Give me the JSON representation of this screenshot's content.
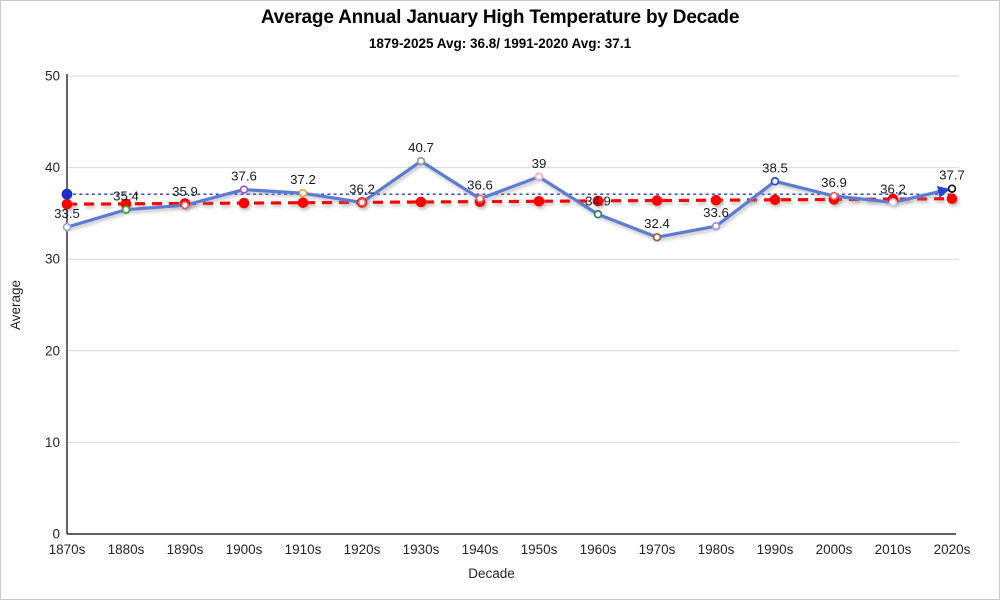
{
  "header": {
    "title": "Average Annual January High Temperature by Decade",
    "subtitle": "1879-2025 Avg: 36.8/ 1991-2020 Avg: 37.1"
  },
  "chart_data": {
    "type": "line",
    "title": "Average Annual January High Temperature by Decade",
    "subtitle": "1879-2025 Avg: 36.8/ 1991-2020 Avg: 37.1",
    "categories": [
      "1870s",
      "1880s",
      "1890s",
      "1900s",
      "1910s",
      "1920s",
      "1930s",
      "1940s",
      "1950s",
      "1960s",
      "1970s",
      "1980s",
      "1990s",
      "2000s",
      "2010s",
      "2020s"
    ],
    "series": [
      {
        "name": "decade-average",
        "values": [
          33.5,
          35.4,
          35.9,
          37.6,
          37.2,
          36.2,
          40.7,
          36.6,
          39,
          34.9,
          32.4,
          33.6,
          38.5,
          36.9,
          36.2,
          37.7
        ],
        "color": "#5b7cd3",
        "arrow_color": "#2743d0",
        "marker_colors": [
          "#8faadc",
          "#43a047",
          "#d0605e",
          "#a855c8",
          "#e8a23c",
          "#e06666",
          "#9c9383",
          "#e06666",
          "#f2a8b8",
          "#2e7d5e",
          "#9c5b35",
          "#9e92d2",
          "#2946d9",
          "#e06666",
          "#c7cbd9",
          "#111111"
        ]
      },
      {
        "name": "linear-trendline",
        "style": "dashed",
        "color": "#ff0000",
        "start_value": 36.0,
        "end_value": 36.6,
        "markers": "red dot at each decade"
      },
      {
        "name": "reference-line-1991-2020-avg",
        "style": "dotted",
        "color": "#2238c8",
        "value": 37.1,
        "start_marker_color": "#1d2fc9"
      }
    ],
    "xlabel": "Decade",
    "ylabel": "Average",
    "ylim": [
      0,
      50
    ],
    "yticks": [
      0,
      10,
      20,
      30,
      40,
      50
    ],
    "grid": "horizontal",
    "legend": false
  }
}
